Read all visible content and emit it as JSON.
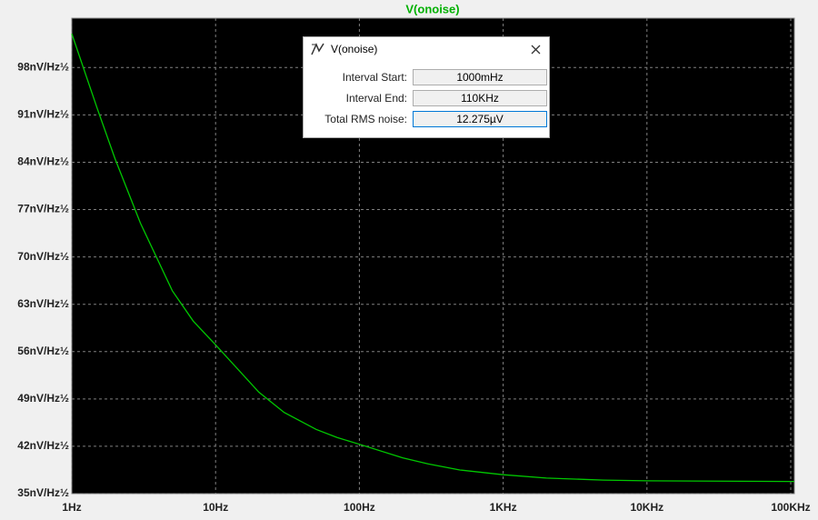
{
  "chart_data": {
    "type": "line",
    "title": "V(onoise)",
    "xscale": "log",
    "grid": true,
    "color": "#00c800",
    "x": [
      1,
      1.5,
      2,
      3,
      5,
      7,
      10,
      20,
      30,
      50,
      70,
      100,
      200,
      300,
      500,
      1000,
      2000,
      5000,
      10000,
      100000,
      106000
    ],
    "values": [
      103,
      92,
      84.5,
      75,
      65,
      60.5,
      57,
      50,
      47,
      44.5,
      43.3,
      42.3,
      40.3,
      39.4,
      38.5,
      37.8,
      37.3,
      37.0,
      36.9,
      36.8,
      36.8
    ],
    "xlim": [
      1,
      106000
    ],
    "ylim": [
      35,
      105.3
    ],
    "xticks": [
      {
        "value": 1,
        "label": "1Hz"
      },
      {
        "value": 10,
        "label": "10Hz"
      },
      {
        "value": 100,
        "label": "100Hz"
      },
      {
        "value": 1000,
        "label": "1KHz"
      },
      {
        "value": 10000,
        "label": "10KHz"
      },
      {
        "value": 100000,
        "label": "100KHz"
      }
    ],
    "yticks": [
      {
        "value": 35,
        "label": "35nV/Hz½"
      },
      {
        "value": 42,
        "label": "42nV/Hz½"
      },
      {
        "value": 49,
        "label": "49nV/Hz½"
      },
      {
        "value": 56,
        "label": "56nV/Hz½"
      },
      {
        "value": 63,
        "label": "63nV/Hz½"
      },
      {
        "value": 70,
        "label": "70nV/Hz½"
      },
      {
        "value": 77,
        "label": "77nV/Hz½"
      },
      {
        "value": 84,
        "label": "84nV/Hz½"
      },
      {
        "value": 91,
        "label": "91nV/Hz½"
      },
      {
        "value": 98,
        "label": "98nV/Hz½"
      }
    ]
  },
  "dialog": {
    "title": "V(onoise)",
    "rows": [
      {
        "label": "Interval Start:",
        "value": "1000mHz"
      },
      {
        "label": "Interval End:",
        "value": "110KHz"
      },
      {
        "label": "Total RMS noise:",
        "value": "12.275µV"
      }
    ]
  }
}
